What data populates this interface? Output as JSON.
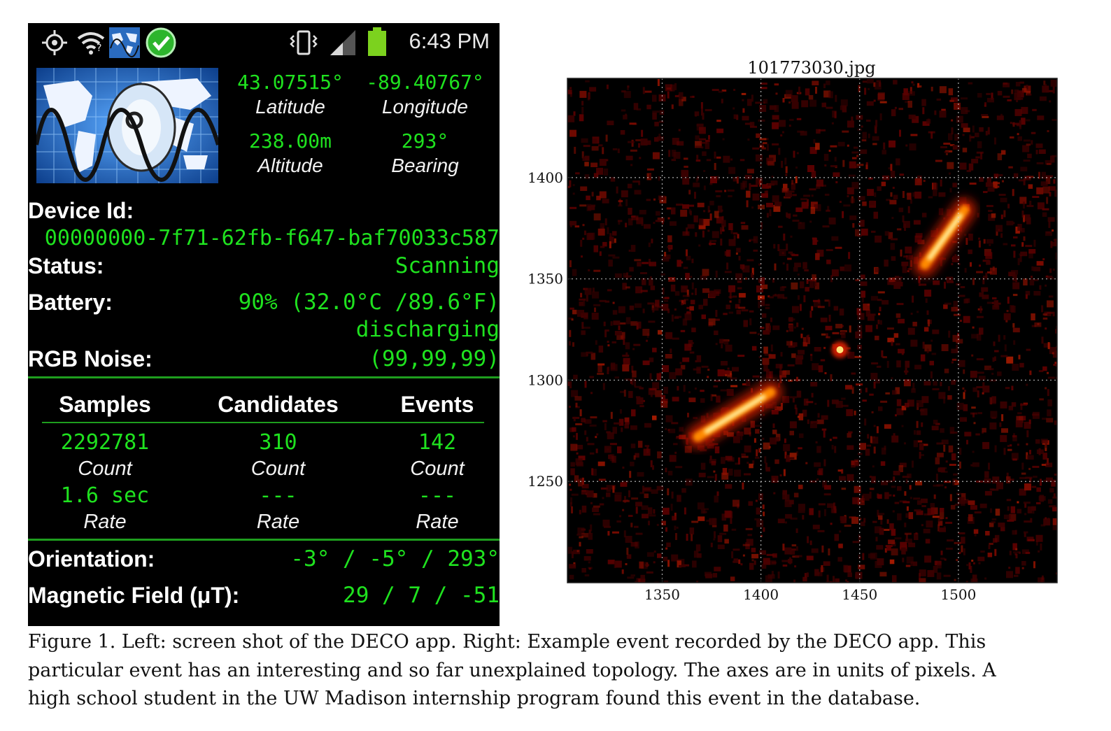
{
  "phone": {
    "status_bar": {
      "time": "6:43 PM",
      "icons": [
        "gps-icon",
        "wifi-icon",
        "deco-app-icon",
        "check-icon",
        "vibrate-icon",
        "signal-icon",
        "battery-icon"
      ],
      "battery_color": "#7cd21e"
    },
    "gps": {
      "latitude": "43.07515°",
      "latitude_label": "Latitude",
      "longitude": "-89.40767°",
      "longitude_label": "Longitude",
      "altitude": "238.00m",
      "altitude_label": "Altitude",
      "bearing": "293°",
      "bearing_label": "Bearing"
    },
    "device_id_label": "Device Id:",
    "device_id": "00000000-7f71-62fb-f647-baf70033c587",
    "status_label": "Status:",
    "status": "Scanning",
    "battery_label": "Battery:",
    "battery": "90% (32.0°C /89.6°F)",
    "battery_state": "discharging",
    "rgb_noise_label": "RGB Noise:",
    "rgb_noise": "(99,99,99)",
    "table": {
      "columns": [
        "Samples",
        "Candidates",
        "Events"
      ],
      "counts": [
        "2292781",
        "310",
        "142"
      ],
      "count_label": "Count",
      "rates": [
        "1.6 sec",
        "---",
        "---"
      ],
      "rate_label": "Rate"
    },
    "orientation_label": "Orientation:",
    "orientation": "-3° / -5° / 293°",
    "magnetic_label": "Magnetic Field (μT):",
    "magnetic": "29 / 7 / -51",
    "accent_color": "#1fe21f"
  },
  "chart_data": {
    "type": "heatmap",
    "title": "101773030.jpg",
    "xlabel": "",
    "ylabel": "",
    "xlim": [
      1302,
      1550
    ],
    "ylim": [
      1200,
      1449
    ],
    "x_ticks": [
      1350,
      1400,
      1450,
      1500
    ],
    "y_ticks": [
      1250,
      1300,
      1350,
      1400
    ],
    "grid": true,
    "colormap": "hot",
    "features": [
      {
        "type": "track",
        "x": [
          1368,
          1405
        ],
        "y": [
          1272,
          1294
        ]
      },
      {
        "type": "track",
        "x": [
          1483,
          1503
        ],
        "y": [
          1357,
          1384
        ]
      },
      {
        "type": "spot",
        "x": 1440,
        "y": 1315
      }
    ]
  },
  "caption": [
    "Figure 1.  Left: screen shot of the DECO app.  Right: Example event recorded by the DECO app.  This",
    "particular event has an interesting and so far unexplained topology.  The axes are in units of pixels.  A",
    "high school student in the UW Madison internship program found this event in the database."
  ]
}
